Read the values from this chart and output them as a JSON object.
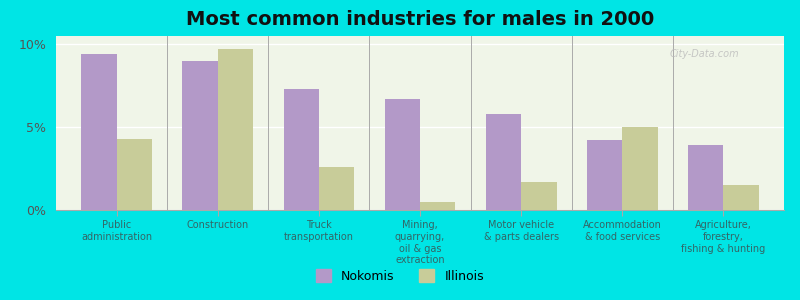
{
  "title": "Most common industries for males in 2000",
  "categories": [
    "Public\nadministration",
    "Construction",
    "Truck\ntransportation",
    "Mining,\nquarrying,\noil & gas\nextraction",
    "Motor vehicle\n& parts dealers",
    "Accommodation\n& food services",
    "Agriculture,\nforestry,\nfishing & hunting"
  ],
  "nokomis_values": [
    9.4,
    9.0,
    7.3,
    6.7,
    5.8,
    4.2,
    3.9
  ],
  "illinois_values": [
    4.3,
    9.7,
    2.6,
    0.5,
    1.7,
    5.0,
    1.5
  ],
  "nokomis_color": "#b399c8",
  "illinois_color": "#c8cc99",
  "background_color": "#00e5e5",
  "plot_bg_color": "#f0f5e8",
  "ylim": [
    0,
    10.5
  ],
  "yticks": [
    0,
    5,
    10
  ],
  "ytick_labels": [
    "0%",
    "5%",
    "10%"
  ],
  "legend_nokomis": "Nokomis",
  "legend_illinois": "Illinois",
  "bar_width": 0.35,
  "title_fontsize": 14,
  "axis_label_fontsize": 7.0,
  "legend_fontsize": 9
}
